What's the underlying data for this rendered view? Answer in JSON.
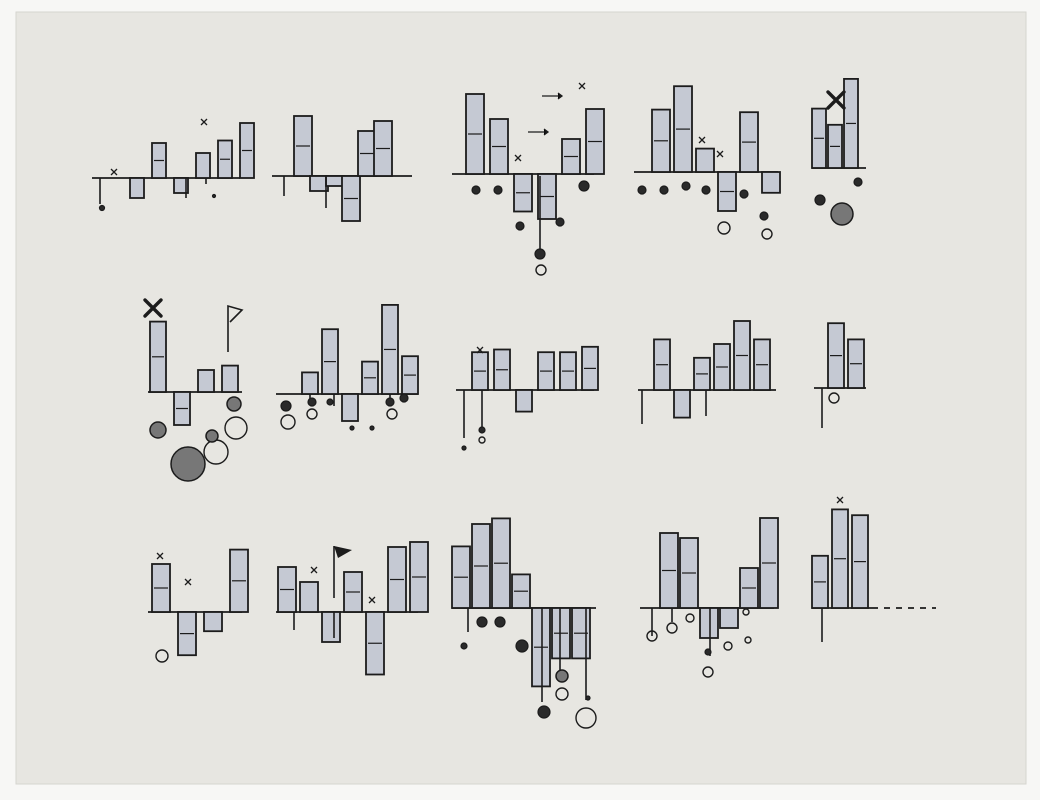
{
  "sheet": {
    "paper_color": "#e7e6e1",
    "border_color": "#f7f7f5",
    "bar_fill": "#c5c9d3",
    "ink": "#1c1c1c"
  },
  "rows": [
    {
      "name": "row-1",
      "panels": [
        {
          "name": "panel-r1-c1",
          "bars": [
            [
              0,
              0
            ],
            [
              0,
              0
            ],
            [
              0,
              44
            ],
            [
              0,
              -20
            ],
            [
              0,
              -13
            ],
            [
              0,
              30
            ],
            [
              0,
              40
            ],
            [
              0,
              46
            ]
          ],
          "stems": [
            [
              0,
              -31
            ],
            [
              -30,
              0
            ],
            [
              -30,
              0
            ],
            [
              20,
              -20
            ],
            [
              30,
              -20
            ],
            [
              50,
              -20
            ],
            [
              50,
              -20
            ],
            [
              0,
              -17
            ],
            [
              0,
              -22
            ]
          ],
          "dots": [],
          "marks": [
            {
              "kind": "x",
              "at": [
                1,
                8
              ]
            },
            {
              "kind": "x",
              "at": [
                5,
                8
              ]
            }
          ]
        },
        {
          "name": "panel-r1-c2",
          "bars": [
            [
              0,
              52
            ],
            [
              0,
              -12
            ],
            [
              0,
              0
            ],
            [
              0,
              -13
            ],
            [
              0,
              -55
            ],
            [
              0,
              46
            ],
            [
              0,
              62
            ]
          ],
          "stems": [
            [
              0,
              -15
            ],
            [
              0,
              -12
            ],
            [
              0,
              -18
            ]
          ],
          "dots": [],
          "marks": []
        },
        {
          "name": "panel-r1-c3",
          "bars": [
            [
              0,
              74
            ],
            [
              0,
              64
            ],
            [
              0,
              -32
            ],
            [
              0,
              -44
            ],
            [
              0,
              -62
            ],
            [
              0,
              22
            ],
            [
              0,
              82
            ]
          ],
          "stems": [
            [
              1,
              -20
            ],
            [
              2,
              -20
            ],
            [
              3,
              -36
            ],
            [
              4,
              -50
            ],
            [
              5,
              -82
            ],
            [
              6,
              -46
            ]
          ],
          "dots": [
            {
              "kind": "filled",
              "bar": 0,
              "y": -15
            },
            {
              "kind": "filled",
              "bar": 1,
              "y": -15
            },
            {
              "kind": "filled",
              "bar": 2,
              "y": -52
            },
            {
              "kind": "filled",
              "bar": 3,
              "y": -70
            },
            {
              "kind": "filled",
              "bar": 3,
              "y": -81
            },
            {
              "kind": "open",
              "bar": 3,
              "y": -96
            },
            {
              "kind": "filled",
              "bar": 4,
              "y": -48
            },
            {
              "kind": "filled",
              "bar": 5,
              "y": -14
            }
          ],
          "marks": [
            {
              "kind": "x",
              "at": [
                2,
                8
              ]
            },
            {
              "kind": "x",
              "at": [
                6,
                8
              ]
            },
            {
              "kind": "arrow",
              "at": [
                5,
                80
              ]
            },
            {
              "kind": "arrow",
              "at": [
                4,
                42
              ]
            }
          ]
        },
        {
          "name": "panel-r1-c4",
          "bars": [
            [
              0,
              62
            ],
            [
              0,
              88
            ],
            [
              0,
              -20
            ],
            [
              0,
              -42
            ],
            [
              0,
              60
            ],
            [
              0,
              -20
            ]
          ],
          "stems": [
            [
              0,
              -20
            ],
            [
              1,
              -12
            ],
            [
              2,
              -32
            ],
            [
              3,
              -44
            ],
            [
              4,
              -22
            ],
            [
              5,
              -40
            ]
          ],
          "dots": [
            {
              "kind": "filled",
              "bar": 0,
              "y": -14
            },
            {
              "kind": "filled",
              "bar": 1,
              "y": -14
            },
            {
              "kind": "filled",
              "bar": 2,
              "y": -14
            },
            {
              "kind": "filled",
              "bar": 3,
              "y": -24
            },
            {
              "kind": "filled",
              "bar": 4,
              "y": -22
            },
            {
              "kind": "open",
              "bar": 4,
              "y": -55
            },
            {
              "kind": "filled",
              "bar": 5,
              "y": -44
            },
            {
              "kind": "open",
              "bar": 5,
              "y": -62
            }
          ],
          "marks": [
            {
              "kind": "x",
              "at": [
                2,
                8
              ]
            },
            {
              "kind": "x",
              "at": [
                3,
                8
              ]
            }
          ]
        },
        {
          "name": "panel-r1-c5",
          "bars": [
            [
              0,
              52
            ],
            [
              0,
              62
            ],
            [
              0,
              -20
            ],
            [
              0,
              -12
            ],
            [
              0,
              82
            ]
          ],
          "stems": [
            [
              0,
              -10
            ],
            [
              2,
              -14
            ]
          ],
          "dots": [
            {
              "kind": "filled",
              "bar": 0,
              "y": -26
            },
            {
              "kind": "hatched-big",
              "bar": 1,
              "y": -42
            }
          ],
          "marks": [
            {
              "kind": "big-x",
              "at": [
                1,
                78
              ]
            }
          ]
        }
      ]
    }
  ],
  "chart_data": [
    {
      "type": "bar",
      "series": [
        {
          "values": [
            -8,
            14,
            -6,
            10,
            15,
            22
          ]
        }
      ]
    },
    {
      "type": "bar",
      "series": [
        {
          "values": [
            24,
            -6,
            -4,
            -18,
            18,
            22
          ]
        }
      ]
    },
    {
      "type": "bar",
      "series": [
        {
          "values": [
            32,
            22,
            -15,
            -18,
            14,
            26
          ]
        }
      ]
    },
    {
      "type": "bar",
      "series": [
        {
          "values": [
            24,
            33,
            9,
            -15,
            23,
            -8
          ]
        }
      ]
    },
    {
      "type": "bar",
      "series": [
        {
          "values": [
            22,
            16,
            33
          ]
        }
      ]
    },
    {
      "type": "bar",
      "series": [
        {
          "values": [
            32,
            -15,
            10,
            12
          ]
        }
      ]
    },
    {
      "type": "bar",
      "series": [
        {
          "values": [
            8,
            24,
            -10,
            12,
            33,
            14
          ]
        }
      ]
    },
    {
      "type": "bar",
      "series": [
        {
          "values": [
            14,
            15,
            -8,
            14,
            14,
            16
          ]
        }
      ]
    },
    {
      "type": "bar",
      "series": [
        {
          "values": [
            22,
            -12,
            14,
            20,
            30,
            22
          ]
        }
      ]
    },
    {
      "type": "bar",
      "series": [
        {
          "values": [
            24,
            18
          ]
        }
      ]
    },
    {
      "type": "bar",
      "series": [
        {
          "values": [
            20,
            -18,
            -8,
            26
          ]
        }
      ]
    },
    {
      "type": "bar",
      "series": [
        {
          "values": [
            18,
            12,
            -12,
            16,
            -25,
            26,
            28
          ]
        }
      ]
    },
    {
      "type": "bar",
      "series": [
        {
          "values": [
            22,
            30,
            32,
            12,
            -28,
            -18,
            -18
          ]
        }
      ]
    },
    {
      "type": "bar",
      "series": [
        {
          "values": [
            30,
            28,
            -12,
            -8,
            16,
            36
          ]
        }
      ]
    },
    {
      "type": "bar",
      "series": [
        {
          "values": [
            18,
            34,
            32
          ]
        }
      ]
    }
  ]
}
